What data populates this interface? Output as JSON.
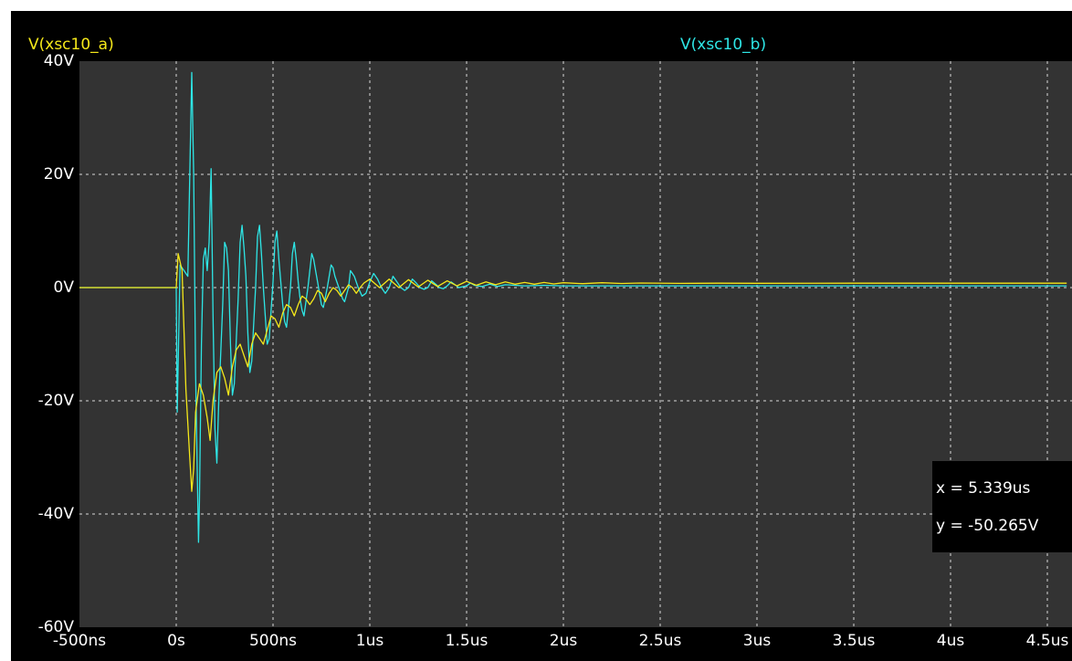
{
  "colors": {
    "background": "#000000",
    "plot_area": "#333333",
    "grid": "#d8d8d8",
    "text": "#ffffff",
    "series_a": "#f5e81a",
    "series_b": "#2ee6e6"
  },
  "cursor": {
    "x_label": "x = 5.339us",
    "y_label": "y = -50.265V"
  },
  "chart_data": {
    "type": "line",
    "title": "",
    "xlabel": "",
    "ylabel": "",
    "xlim": [
      -0.5,
      4.6
    ],
    "ylim": [
      -60,
      40
    ],
    "x_unit": "us",
    "grid": true,
    "legend_position": "top",
    "x_ticks": [
      {
        "value": -0.5,
        "label": "-500ns"
      },
      {
        "value": 0,
        "label": "0s"
      },
      {
        "value": 0.5,
        "label": "500ns"
      },
      {
        "value": 1,
        "label": "1us"
      },
      {
        "value": 1.5,
        "label": "1.5us"
      },
      {
        "value": 2,
        "label": "2us"
      },
      {
        "value": 2.5,
        "label": "2.5us"
      },
      {
        "value": 3,
        "label": "3us"
      },
      {
        "value": 3.5,
        "label": "3.5us"
      },
      {
        "value": 4,
        "label": "4us"
      },
      {
        "value": 4.5,
        "label": "4.5us"
      }
    ],
    "y_ticks": [
      {
        "value": 40,
        "label": "40V"
      },
      {
        "value": 20,
        "label": "20V"
      },
      {
        "value": 0,
        "label": "0V"
      },
      {
        "value": -20,
        "label": "-20V"
      },
      {
        "value": -40,
        "label": "-40V"
      },
      {
        "value": -60,
        "label": "-60V"
      }
    ],
    "series": [
      {
        "name": "V(xsc10_a)",
        "color": "#f5e81a",
        "points": [
          [
            -0.5,
            0
          ],
          [
            0.0,
            0
          ],
          [
            0.01,
            6
          ],
          [
            0.03,
            3
          ],
          [
            0.05,
            -18
          ],
          [
            0.07,
            -30
          ],
          [
            0.08,
            -36
          ],
          [
            0.09,
            -32
          ],
          [
            0.1,
            -22
          ],
          [
            0.12,
            -17
          ],
          [
            0.14,
            -19
          ],
          [
            0.16,
            -23
          ],
          [
            0.175,
            -27
          ],
          [
            0.19,
            -20
          ],
          [
            0.21,
            -15
          ],
          [
            0.23,
            -14
          ],
          [
            0.25,
            -16
          ],
          [
            0.27,
            -19
          ],
          [
            0.29,
            -14
          ],
          [
            0.31,
            -11
          ],
          [
            0.33,
            -10
          ],
          [
            0.35,
            -12
          ],
          [
            0.37,
            -14
          ],
          [
            0.39,
            -10
          ],
          [
            0.41,
            -8
          ],
          [
            0.43,
            -9
          ],
          [
            0.45,
            -10
          ],
          [
            0.47,
            -7.5
          ],
          [
            0.49,
            -5
          ],
          [
            0.51,
            -5.5
          ],
          [
            0.53,
            -7
          ],
          [
            0.55,
            -4.5
          ],
          [
            0.57,
            -3
          ],
          [
            0.59,
            -3.5
          ],
          [
            0.61,
            -5
          ],
          [
            0.63,
            -3
          ],
          [
            0.65,
            -1.5
          ],
          [
            0.67,
            -2
          ],
          [
            0.69,
            -3
          ],
          [
            0.71,
            -2
          ],
          [
            0.73,
            -0.5
          ],
          [
            0.75,
            -1
          ],
          [
            0.77,
            -2.5
          ],
          [
            0.79,
            -1
          ],
          [
            0.81,
            0
          ],
          [
            0.83,
            -0.5
          ],
          [
            0.85,
            -1.5
          ],
          [
            0.87,
            -0.5
          ],
          [
            0.89,
            0.5
          ],
          [
            0.91,
            0
          ],
          [
            0.93,
            -1
          ],
          [
            0.95,
            0
          ],
          [
            0.97,
            0.8
          ],
          [
            1.0,
            1.5
          ],
          [
            1.05,
            0
          ],
          [
            1.1,
            1.5
          ],
          [
            1.15,
            0
          ],
          [
            1.2,
            1.4
          ],
          [
            1.25,
            0.1
          ],
          [
            1.3,
            1.3
          ],
          [
            1.35,
            0.2
          ],
          [
            1.4,
            1.2
          ],
          [
            1.45,
            0.3
          ],
          [
            1.5,
            1.1
          ],
          [
            1.55,
            0.4
          ],
          [
            1.6,
            1.0
          ],
          [
            1.65,
            0.5
          ],
          [
            1.7,
            1.0
          ],
          [
            1.75,
            0.6
          ],
          [
            1.8,
            0.9
          ],
          [
            1.85,
            0.6
          ],
          [
            1.9,
            0.9
          ],
          [
            1.95,
            0.65
          ],
          [
            2.0,
            0.85
          ],
          [
            2.1,
            0.7
          ],
          [
            2.2,
            0.85
          ],
          [
            2.3,
            0.72
          ],
          [
            2.4,
            0.8
          ],
          [
            2.6,
            0.75
          ],
          [
            2.8,
            0.78
          ],
          [
            3.0,
            0.76
          ],
          [
            3.5,
            0.77
          ],
          [
            4.0,
            0.77
          ],
          [
            4.6,
            0.77
          ]
        ]
      },
      {
        "name": "V(xsc10_b)",
        "color": "#2ee6e6",
        "points": [
          [
            -0.5,
            0
          ],
          [
            0.0,
            0
          ],
          [
            0.005,
            -22
          ],
          [
            0.02,
            4
          ],
          [
            0.04,
            3
          ],
          [
            0.06,
            2
          ],
          [
            0.08,
            38
          ],
          [
            0.09,
            20
          ],
          [
            0.1,
            -15
          ],
          [
            0.11,
            -35
          ],
          [
            0.115,
            -45
          ],
          [
            0.12,
            -38
          ],
          [
            0.13,
            -10
          ],
          [
            0.14,
            5
          ],
          [
            0.15,
            7
          ],
          [
            0.16,
            3
          ],
          [
            0.17,
            8
          ],
          [
            0.18,
            21
          ],
          [
            0.19,
            -5
          ],
          [
            0.2,
            -25
          ],
          [
            0.21,
            -31
          ],
          [
            0.22,
            -20
          ],
          [
            0.24,
            -3
          ],
          [
            0.25,
            8
          ],
          [
            0.26,
            7
          ],
          [
            0.27,
            3
          ],
          [
            0.28,
            -10
          ],
          [
            0.29,
            -19
          ],
          [
            0.3,
            -17
          ],
          [
            0.32,
            -2
          ],
          [
            0.33,
            8
          ],
          [
            0.34,
            11
          ],
          [
            0.35,
            7
          ],
          [
            0.36,
            2
          ],
          [
            0.37,
            -8
          ],
          [
            0.38,
            -15
          ],
          [
            0.39,
            -13
          ],
          [
            0.41,
            0
          ],
          [
            0.42,
            9
          ],
          [
            0.43,
            11
          ],
          [
            0.44,
            6
          ],
          [
            0.45,
            0
          ],
          [
            0.46,
            -5
          ],
          [
            0.47,
            -10
          ],
          [
            0.48,
            -9
          ],
          [
            0.5,
            1
          ],
          [
            0.51,
            8
          ],
          [
            0.52,
            10
          ],
          [
            0.53,
            5
          ],
          [
            0.54,
            1
          ],
          [
            0.55,
            -3
          ],
          [
            0.56,
            -6
          ],
          [
            0.57,
            -7
          ],
          [
            0.59,
            0
          ],
          [
            0.6,
            6
          ],
          [
            0.61,
            8
          ],
          [
            0.62,
            5
          ],
          [
            0.63,
            1
          ],
          [
            0.64,
            -2
          ],
          [
            0.65,
            -4
          ],
          [
            0.66,
            -5
          ],
          [
            0.68,
            0
          ],
          [
            0.7,
            6
          ],
          [
            0.71,
            5
          ],
          [
            0.72,
            3
          ],
          [
            0.73,
            1
          ],
          [
            0.74,
            -1
          ],
          [
            0.75,
            -3
          ],
          [
            0.76,
            -3.5
          ],
          [
            0.78,
            0
          ],
          [
            0.8,
            4
          ],
          [
            0.81,
            3.5
          ],
          [
            0.82,
            2
          ],
          [
            0.84,
            0
          ],
          [
            0.86,
            -2
          ],
          [
            0.87,
            -2.5
          ],
          [
            0.89,
            0
          ],
          [
            0.9,
            3
          ],
          [
            0.92,
            2
          ],
          [
            0.94,
            0
          ],
          [
            0.96,
            -1.5
          ],
          [
            0.98,
            -1
          ],
          [
            1.0,
            1
          ],
          [
            1.02,
            2.5
          ],
          [
            1.04,
            1.5
          ],
          [
            1.06,
            0
          ],
          [
            1.08,
            -1
          ],
          [
            1.1,
            0
          ],
          [
            1.12,
            2
          ],
          [
            1.14,
            1
          ],
          [
            1.16,
            0
          ],
          [
            1.18,
            -0.5
          ],
          [
            1.2,
            0
          ],
          [
            1.22,
            1.5
          ],
          [
            1.24,
            0.8
          ],
          [
            1.26,
            0
          ],
          [
            1.28,
            -0.3
          ],
          [
            1.3,
            0
          ],
          [
            1.32,
            1.2
          ],
          [
            1.34,
            0.6
          ],
          [
            1.36,
            0
          ],
          [
            1.38,
            -0.2
          ],
          [
            1.4,
            0.3
          ],
          [
            1.42,
            1
          ],
          [
            1.44,
            0.5
          ],
          [
            1.46,
            0
          ],
          [
            1.5,
            0.3
          ],
          [
            1.52,
            0.8
          ],
          [
            1.54,
            0.4
          ],
          [
            1.58,
            0.2
          ],
          [
            1.62,
            0.6
          ],
          [
            1.66,
            0.2
          ],
          [
            1.7,
            0.5
          ],
          [
            1.8,
            0.3
          ],
          [
            1.9,
            0.4
          ],
          [
            2.0,
            0.3
          ],
          [
            2.5,
            0.3
          ],
          [
            3.0,
            0.3
          ],
          [
            4.0,
            0.3
          ],
          [
            4.6,
            0.3
          ]
        ]
      }
    ]
  }
}
